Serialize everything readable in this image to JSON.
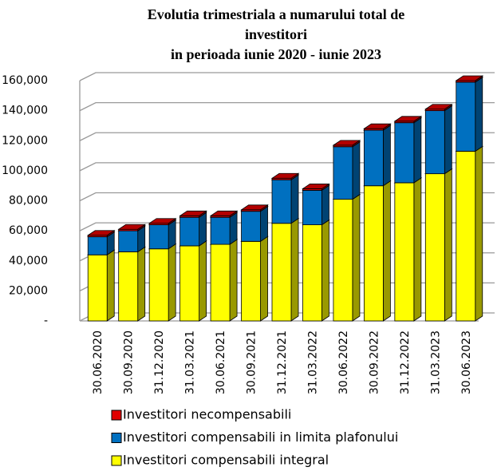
{
  "chart_data": {
    "type": "bar3d_stacked",
    "title": [
      "Evolutia trimestriala a numarului total de",
      "investitori",
      "in perioada iunie 2020 - iunie 2023"
    ],
    "categories": [
      "30.06.2020",
      "30.09.2020",
      "31.12.2020",
      "31.03.2021",
      "30.06.2021",
      "30.09.2021",
      "31.12.2021",
      "31.03.2022",
      "30.06.2022",
      "30.09.2022",
      "31.12.2022",
      "31.03.2023",
      "30.06.2023"
    ],
    "series": [
      {
        "name": "Investitori necompensabili",
        "color": "#e00000",
        "values": [
          1000,
          1000,
          1000,
          1000,
          1000,
          1000,
          1000,
          1000,
          1000,
          1000,
          1000,
          1000,
          1000
        ]
      },
      {
        "name": "Investitori compensabili in limita plafonului",
        "color": "#0070c0",
        "values": [
          12000,
          14000,
          16000,
          19000,
          18000,
          20000,
          29000,
          23000,
          35000,
          37000,
          40000,
          42000,
          46000
        ]
      },
      {
        "name": "Investitori compensabili integral",
        "color": "#ffff00",
        "values": [
          44000,
          46000,
          48000,
          50000,
          51000,
          53000,
          65000,
          64000,
          81000,
          90000,
          92000,
          98000,
          113000
        ]
      }
    ],
    "ylim": [
      0,
      160000
    ],
    "yticks": [
      {
        "value": 0,
        "label": "-"
      },
      {
        "value": 20000,
        "label": "20,000"
      },
      {
        "value": 40000,
        "label": "40,000"
      },
      {
        "value": 60000,
        "label": "60,000"
      },
      {
        "value": 80000,
        "label": "80,000"
      },
      {
        "value": 100000,
        "label": "100,000"
      },
      {
        "value": 120000,
        "label": "120,000"
      },
      {
        "value": 140000,
        "label": "140,000"
      },
      {
        "value": 160000,
        "label": "160,000"
      }
    ],
    "grid": true
  }
}
